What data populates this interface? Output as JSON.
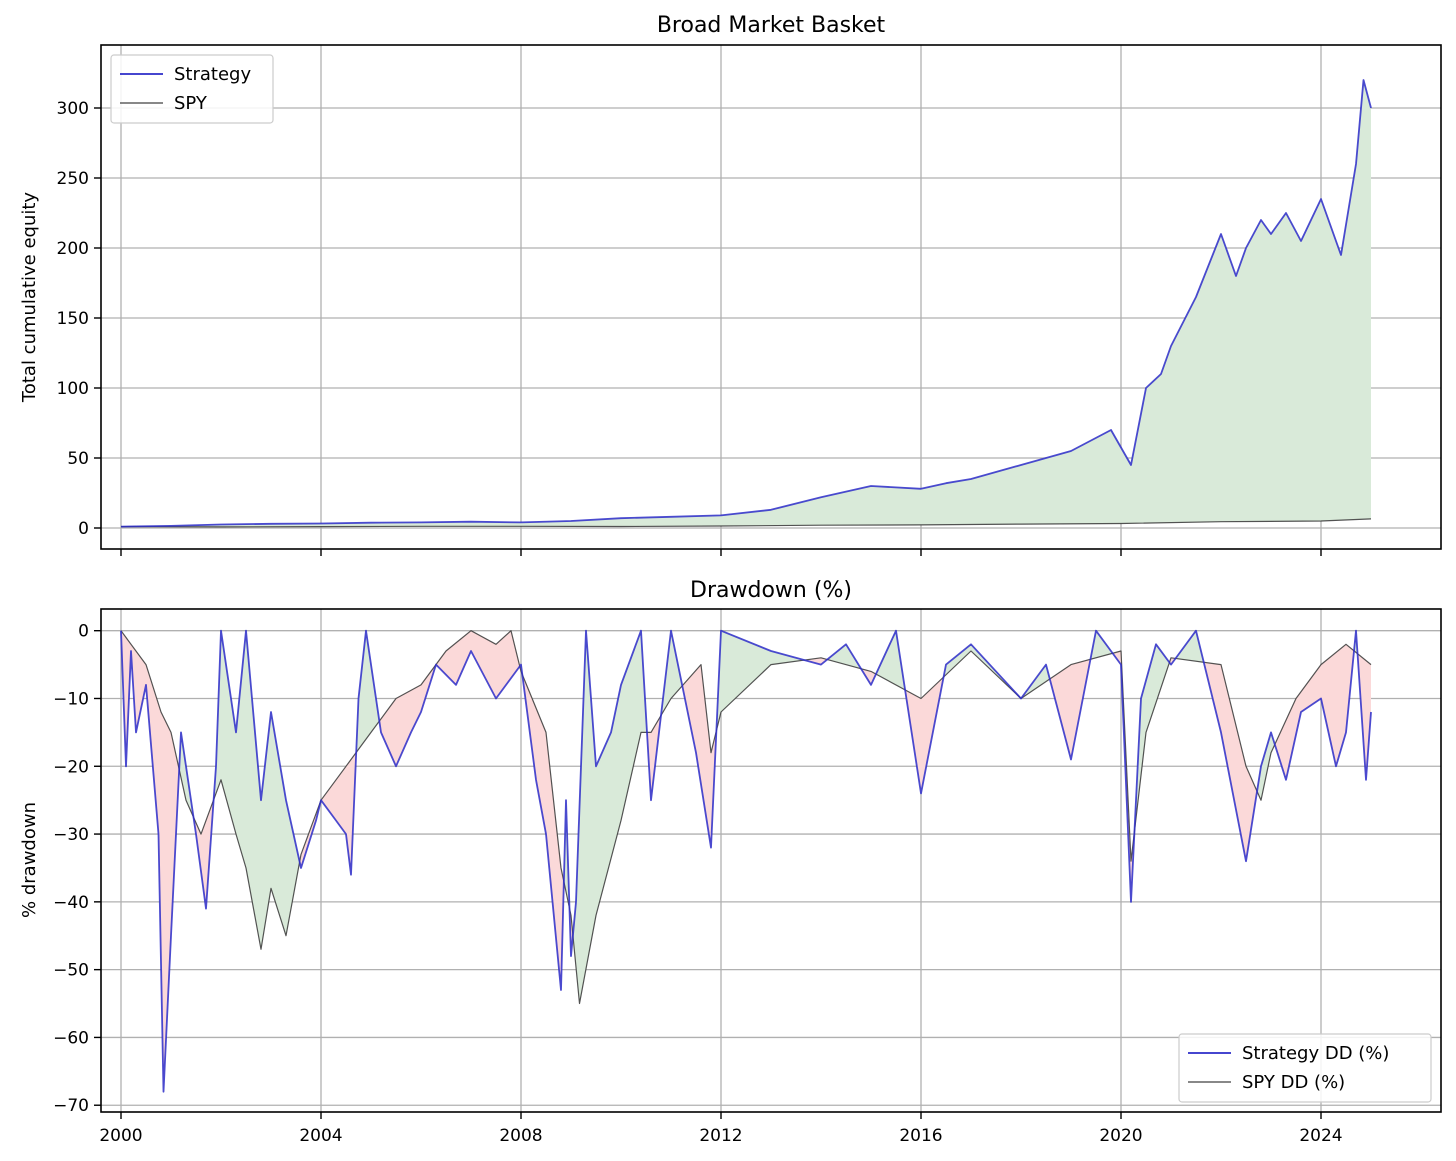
{
  "colors": {
    "strategy": "#2b2bc8",
    "spy": "#404040",
    "fill_gain": "#d9ead9",
    "fill_loss": "#fbd9d9",
    "grid": "#b0b0b0"
  },
  "chart_data": [
    {
      "type": "line",
      "title": "Broad Market Basket",
      "xlabel": "",
      "ylabel": "Total cumulative equity",
      "xlim": [
        1999.6,
        2026.4
      ],
      "ylim": [
        -15,
        345
      ],
      "yticks": [
        0,
        50,
        100,
        150,
        200,
        250,
        300
      ],
      "grid": true,
      "legend_position": "top-left",
      "fill_between": true,
      "series": [
        {
          "name": "Strategy",
          "color": "#2b2bc8",
          "x": [
            2000.0,
            2001.0,
            2002.0,
            2003.0,
            2004.0,
            2005.0,
            2006.0,
            2007.0,
            2008.0,
            2009.0,
            2010.0,
            2011.0,
            2012.0,
            2013.0,
            2014.0,
            2015.0,
            2016.0,
            2016.5,
            2017.0,
            2018.0,
            2019.0,
            2019.8,
            2020.2,
            2020.5,
            2020.8,
            2021.0,
            2021.5,
            2022.0,
            2022.3,
            2022.5,
            2022.8,
            2023.0,
            2023.3,
            2023.6,
            2024.0,
            2024.4,
            2024.7,
            2024.85,
            2025.0
          ],
          "y": [
            1,
            1.5,
            2.5,
            3,
            3.2,
            3.8,
            4,
            4.5,
            4,
            5,
            7,
            8,
            9,
            13,
            22,
            30,
            28,
            32,
            35,
            45,
            55,
            70,
            45,
            100,
            110,
            130,
            165,
            210,
            180,
            200,
            220,
            210,
            225,
            205,
            235,
            195,
            260,
            320,
            300
          ]
        },
        {
          "name": "SPY",
          "color": "#404040",
          "x": [
            2000.0,
            2002.0,
            2004.0,
            2006.0,
            2008.0,
            2010.0,
            2012.0,
            2014.0,
            2016.0,
            2018.0,
            2020.0,
            2022.0,
            2024.0,
            2025.0
          ],
          "y": [
            1,
            0.8,
            1,
            1.2,
            1.2,
            1.1,
            1.4,
            2,
            2.2,
            2.8,
            3.2,
            4.5,
            5,
            6.5
          ]
        }
      ]
    },
    {
      "type": "line",
      "title": "Drawdown (%)",
      "xlabel": "",
      "ylabel": "% drawdown",
      "xlim": [
        1999.6,
        2026.4
      ],
      "ylim": [
        -71,
        3.2
      ],
      "xticks": [
        2000,
        2004,
        2008,
        2012,
        2016,
        2020,
        2024
      ],
      "yticks": [
        0,
        -10,
        -20,
        -30,
        -40,
        -50,
        -60,
        -70
      ],
      "grid": true,
      "legend_position": "bottom-right",
      "fill_between": true,
      "series": [
        {
          "name": "Strategy DD (%)",
          "color": "#2b2bc8",
          "x": [
            2000.0,
            2000.1,
            2000.2,
            2000.3,
            2000.5,
            2000.75,
            2000.85,
            2001.0,
            2001.2,
            2001.5,
            2001.7,
            2001.9,
            2002.0,
            2002.3,
            2002.5,
            2002.8,
            2003.0,
            2003.3,
            2003.6,
            2003.9,
            2004.0,
            2004.3,
            2004.5,
            2004.6,
            2004.75,
            2004.9,
            2005.2,
            2005.5,
            2005.8,
            2006.0,
            2006.3,
            2006.7,
            2007.0,
            2007.5,
            2008.0,
            2008.3,
            2008.5,
            2008.8,
            2008.9,
            2009.0,
            2009.1,
            2009.3,
            2009.5,
            2009.8,
            2010.0,
            2010.4,
            2010.6,
            2011.0,
            2011.5,
            2011.8,
            2012.0,
            2013.0,
            2014.0,
            2014.5,
            2015.0,
            2015.5,
            2016.0,
            2016.5,
            2017.0,
            2018.0,
            2018.5,
            2019.0,
            2019.5,
            2020.0,
            2020.2,
            2020.4,
            2020.7,
            2021.0,
            2021.5,
            2022.0,
            2022.5,
            2022.8,
            2023.0,
            2023.3,
            2023.6,
            2024.0,
            2024.3,
            2024.5,
            2024.7,
            2024.9,
            2025.0
          ],
          "y": [
            0,
            -20,
            -3,
            -15,
            -8,
            -30,
            -68,
            -45,
            -15,
            -30,
            -41,
            -20,
            0,
            -15,
            0,
            -25,
            -12,
            -25,
            -35,
            -28,
            -25,
            -28,
            -30,
            -36,
            -10,
            0,
            -15,
            -20,
            -15,
            -12,
            -5,
            -8,
            -3,
            -10,
            -5,
            -22,
            -30,
            -53,
            -25,
            -48,
            -40,
            0,
            -20,
            -15,
            -8,
            0,
            -25,
            0,
            -18,
            -32,
            0,
            -3,
            -5,
            -2,
            -8,
            0,
            -24,
            -5,
            -2,
            -10,
            -5,
            -19,
            0,
            -5,
            -40,
            -10,
            -2,
            -5,
            0,
            -15,
            -34,
            -20,
            -15,
            -22,
            -12,
            -10,
            -20,
            -15,
            0,
            -22,
            -12
          ]
        },
        {
          "name": "SPY DD (%)",
          "color": "#404040",
          "x": [
            2000.0,
            2000.5,
            2000.8,
            2001.0,
            2001.3,
            2001.6,
            2002.0,
            2002.3,
            2002.5,
            2002.8,
            2003.0,
            2003.3,
            2003.6,
            2004.0,
            2004.5,
            2005.0,
            2005.5,
            2006.0,
            2006.5,
            2007.0,
            2007.5,
            2007.8,
            2008.0,
            2008.5,
            2008.8,
            2009.0,
            2009.17,
            2009.5,
            2010.0,
            2010.4,
            2010.6,
            2011.0,
            2011.6,
            2011.8,
            2012.0,
            2013.0,
            2014.0,
            2015.0,
            2016.0,
            2017.0,
            2018.0,
            2019.0,
            2020.0,
            2020.2,
            2020.5,
            2021.0,
            2022.0,
            2022.5,
            2022.8,
            2023.0,
            2023.5,
            2024.0,
            2024.5,
            2025.0
          ],
          "y": [
            0,
            -5,
            -12,
            -15,
            -25,
            -30,
            -22,
            -30,
            -35,
            -47,
            -38,
            -45,
            -33,
            -25,
            -20,
            -15,
            -10,
            -8,
            -3,
            0,
            -2,
            0,
            -6,
            -15,
            -35,
            -42,
            -55,
            -42,
            -28,
            -15,
            -15,
            -10,
            -5,
            -18,
            -12,
            -5,
            -4,
            -6,
            -10,
            -3,
            -10,
            -5,
            -3,
            -34,
            -15,
            -4,
            -5,
            -20,
            -25,
            -18,
            -10,
            -5,
            -2,
            -5
          ]
        }
      ]
    }
  ]
}
